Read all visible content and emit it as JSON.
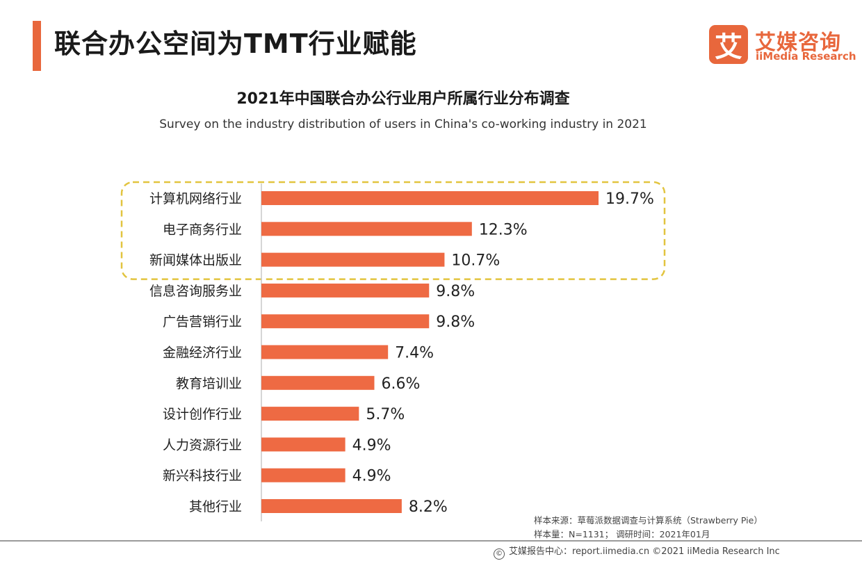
{
  "header": {
    "title": "联合办公空间为TMT行业赋能",
    "accent_color": "#e8673c"
  },
  "logo": {
    "mark": "艾",
    "name_cn": "艾媒咨询",
    "name_en": "iiMedia Research",
    "color": "#e8673c"
  },
  "chart_data": {
    "type": "bar",
    "orientation": "horizontal",
    "title": "2021年中国联合办公行业用户所属行业分布调查",
    "subtitle": "Survey on the industry distribution of users in China's co-working industry in 2021",
    "categories": [
      "计算机网络行业",
      "电子商务行业",
      "新闻媒体出版业",
      "信息咨询服务业",
      "广告营销行业",
      "金融经济行业",
      "教育培训业",
      "设计创作行业",
      "人力资源行业",
      "新兴科技行业",
      "其他行业"
    ],
    "values": [
      19.7,
      12.3,
      10.7,
      9.8,
      9.8,
      7.4,
      6.6,
      5.7,
      4.9,
      4.9,
      8.2
    ],
    "value_labels": [
      "19.7%",
      "12.3%",
      "10.7%",
      "9.8%",
      "9.8%",
      "7.4%",
      "6.6%",
      "5.7%",
      "4.9%",
      "4.9%",
      "8.2%"
    ],
    "unit": "%",
    "xlim": [
      0,
      19.7
    ],
    "bar_color": "#ee6a43",
    "highlight_color": "#e2c43f",
    "highlighted_categories": [
      "计算机网络行业",
      "电子商务行业",
      "新闻媒体出版业"
    ],
    "grid": false
  },
  "footer": {
    "sample_source": "样本来源：草莓派数据调查与计算系统（Strawberry Pie）",
    "sample_size": "样本量：N=1131；  调研时间：2021年01月",
    "report_center": "艾媒报告中心：report.iimedia.cn   ©2021  iiMedia Research  Inc"
  }
}
